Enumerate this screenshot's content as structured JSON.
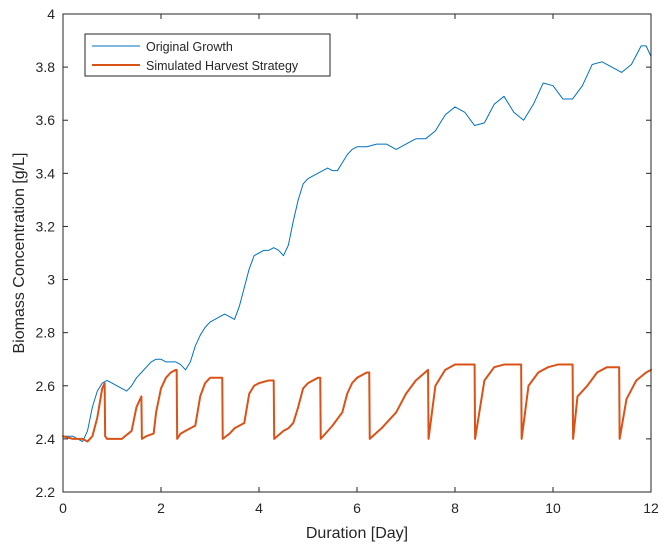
{
  "chart_data": {
    "type": "line",
    "title": "",
    "xlabel": "Duration [Day]",
    "ylabel": "Biomass Concentration [g/L]",
    "xlim": [
      0,
      12
    ],
    "ylim": [
      2.2,
      4.0
    ],
    "xticks": [
      0,
      2,
      4,
      6,
      8,
      10,
      12
    ],
    "xtick_labels": [
      "0",
      "2",
      "4",
      "6",
      "8",
      "10",
      "12"
    ],
    "yticks": [
      2.2,
      2.4,
      2.6,
      2.8,
      3.0,
      3.2,
      3.4,
      3.6,
      3.8,
      4.0
    ],
    "ytick_labels": [
      "2.2",
      "2.4",
      "2.6",
      "2.8",
      "3",
      "3.2",
      "3.4",
      "3.6",
      "3.8",
      "4"
    ],
    "grid": false,
    "legend_position": "top-left",
    "series": [
      {
        "name": "Original Growth",
        "color": "#0072BD",
        "x": [
          0,
          0.1,
          0.2,
          0.3,
          0.4,
          0.5,
          0.6,
          0.7,
          0.8,
          0.9,
          1.0,
          1.1,
          1.2,
          1.3,
          1.4,
          1.5,
          1.6,
          1.7,
          1.8,
          1.9,
          2.0,
          2.1,
          2.2,
          2.3,
          2.4,
          2.5,
          2.6,
          2.7,
          2.8,
          2.9,
          3.0,
          3.1,
          3.2,
          3.3,
          3.4,
          3.5,
          3.6,
          3.7,
          3.8,
          3.9,
          4.0,
          4.1,
          4.2,
          4.3,
          4.4,
          4.5,
          4.6,
          4.7,
          4.8,
          4.9,
          5.0,
          5.1,
          5.2,
          5.3,
          5.4,
          5.5,
          5.6,
          5.7,
          5.8,
          5.9,
          6.0,
          6.2,
          6.4,
          6.6,
          6.8,
          7.0,
          7.2,
          7.4,
          7.6,
          7.8,
          8.0,
          8.2,
          8.4,
          8.6,
          8.8,
          9.0,
          9.2,
          9.4,
          9.6,
          9.8,
          10.0,
          10.2,
          10.4,
          10.6,
          10.8,
          11.0,
          11.2,
          11.4,
          11.6,
          11.8,
          11.9,
          12.0
        ],
        "y": [
          2.41,
          2.41,
          2.41,
          2.4,
          2.39,
          2.43,
          2.52,
          2.58,
          2.61,
          2.62,
          2.61,
          2.6,
          2.59,
          2.58,
          2.6,
          2.63,
          2.65,
          2.67,
          2.69,
          2.7,
          2.7,
          2.69,
          2.69,
          2.69,
          2.68,
          2.66,
          2.69,
          2.75,
          2.79,
          2.82,
          2.84,
          2.85,
          2.86,
          2.87,
          2.86,
          2.85,
          2.9,
          2.97,
          3.04,
          3.09,
          3.1,
          3.11,
          3.11,
          3.12,
          3.11,
          3.09,
          3.13,
          3.22,
          3.3,
          3.36,
          3.38,
          3.39,
          3.4,
          3.41,
          3.42,
          3.41,
          3.41,
          3.44,
          3.47,
          3.49,
          3.5,
          3.5,
          3.51,
          3.51,
          3.49,
          3.51,
          3.53,
          3.53,
          3.56,
          3.62,
          3.65,
          3.63,
          3.58,
          3.59,
          3.66,
          3.69,
          3.63,
          3.6,
          3.66,
          3.74,
          3.73,
          3.68,
          3.68,
          3.73,
          3.81,
          3.82,
          3.8,
          3.78,
          3.81,
          3.88,
          3.88,
          3.84
        ]
      },
      {
        "name": "Simulated Harvest Strategy",
        "color": "#D95319",
        "x": [
          0,
          0.2,
          0.4,
          0.5,
          0.6,
          0.7,
          0.8,
          0.85,
          0.86,
          0.9,
          1.0,
          1.2,
          1.4,
          1.5,
          1.6,
          1.61,
          1.7,
          1.85,
          1.9,
          2.0,
          2.1,
          2.2,
          2.3,
          2.32,
          2.33,
          2.4,
          2.5,
          2.6,
          2.7,
          2.8,
          2.9,
          3.0,
          3.2,
          3.25,
          3.26,
          3.4,
          3.5,
          3.6,
          3.7,
          3.8,
          3.9,
          4.0,
          4.2,
          4.3,
          4.31,
          4.5,
          4.6,
          4.7,
          4.8,
          4.9,
          5.0,
          5.1,
          5.2,
          5.25,
          5.26,
          5.5,
          5.7,
          5.8,
          5.9,
          6.0,
          6.1,
          6.2,
          6.25,
          6.26,
          6.5,
          6.8,
          7.0,
          7.2,
          7.45,
          7.46,
          7.6,
          7.8,
          8.0,
          8.2,
          8.4,
          8.41,
          8.6,
          8.8,
          9.0,
          9.2,
          9.35,
          9.36,
          9.5,
          9.7,
          9.9,
          10.1,
          10.35,
          10.4,
          10.41,
          10.5,
          10.7,
          10.9,
          11.1,
          11.35,
          11.36,
          11.5,
          11.7,
          11.9,
          12.0
        ],
        "y": [
          2.41,
          2.4,
          2.4,
          2.39,
          2.41,
          2.48,
          2.59,
          2.61,
          2.41,
          2.4,
          2.4,
          2.4,
          2.43,
          2.52,
          2.56,
          2.4,
          2.41,
          2.42,
          2.5,
          2.59,
          2.63,
          2.65,
          2.66,
          2.66,
          2.4,
          2.42,
          2.43,
          2.44,
          2.45,
          2.56,
          2.61,
          2.63,
          2.63,
          2.63,
          2.4,
          2.42,
          2.44,
          2.45,
          2.46,
          2.57,
          2.6,
          2.61,
          2.62,
          2.62,
          2.4,
          2.43,
          2.44,
          2.46,
          2.52,
          2.59,
          2.61,
          2.62,
          2.63,
          2.63,
          2.4,
          2.45,
          2.5,
          2.57,
          2.61,
          2.63,
          2.64,
          2.65,
          2.65,
          2.4,
          2.44,
          2.5,
          2.57,
          2.62,
          2.66,
          2.4,
          2.6,
          2.66,
          2.68,
          2.68,
          2.68,
          2.4,
          2.62,
          2.67,
          2.68,
          2.68,
          2.68,
          2.4,
          2.6,
          2.65,
          2.67,
          2.68,
          2.68,
          2.68,
          2.4,
          2.56,
          2.6,
          2.65,
          2.67,
          2.67,
          2.4,
          2.55,
          2.62,
          2.65,
          2.66
        ]
      }
    ]
  }
}
